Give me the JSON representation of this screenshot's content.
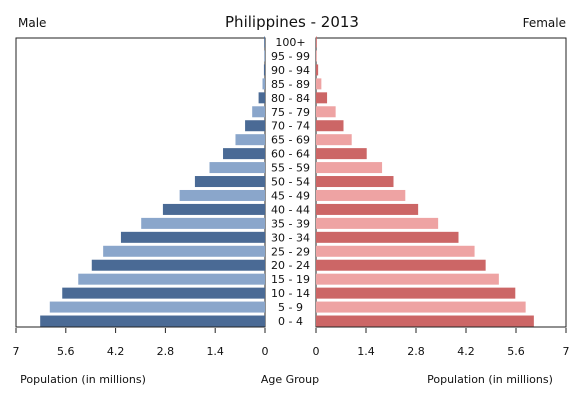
{
  "chart_data": {
    "type": "bar",
    "title": "Philippines - 2013",
    "left_label": "Male",
    "right_label": "Female",
    "xlabel_left": "Population (in millions)",
    "xlabel_center": "Age Group",
    "xlabel_right": "Population (in millions)",
    "xlim": [
      0,
      7
    ],
    "x_ticks": [
      "7",
      "5.6",
      "4.2",
      "2.8",
      "1.4",
      "0",
      "0",
      "1.4",
      "2.8",
      "4.2",
      "5.6",
      "7"
    ],
    "categories": [
      "0 - 4",
      "5 - 9",
      "10 - 14",
      "15 - 19",
      "20 - 24",
      "25 - 29",
      "30 - 34",
      "35 - 39",
      "40 - 44",
      "45 - 49",
      "50 - 54",
      "55 - 59",
      "60 - 64",
      "65 - 69",
      "70 - 74",
      "75 - 79",
      "80 - 84",
      "85 - 89",
      "90 - 94",
      "95 - 99",
      "100+"
    ],
    "series": [
      {
        "name": "Male",
        "values": [
          6.32,
          6.05,
          5.7,
          5.25,
          4.87,
          4.55,
          4.05,
          3.48,
          2.87,
          2.4,
          1.97,
          1.56,
          1.18,
          0.83,
          0.56,
          0.36,
          0.18,
          0.07,
          0.03,
          0.01,
          0.005
        ]
      },
      {
        "name": "Female",
        "values": [
          6.1,
          5.87,
          5.58,
          5.12,
          4.75,
          4.44,
          3.99,
          3.42,
          2.86,
          2.5,
          2.17,
          1.85,
          1.42,
          1.0,
          0.77,
          0.55,
          0.31,
          0.15,
          0.06,
          0.02,
          0.005
        ]
      }
    ],
    "colors": {
      "male_dark": "#4a6a95",
      "male_light": "#8aa6cb",
      "female_dark": "#cc6666",
      "female_light": "#eea3a3"
    },
    "grid": false,
    "legend": "none"
  }
}
